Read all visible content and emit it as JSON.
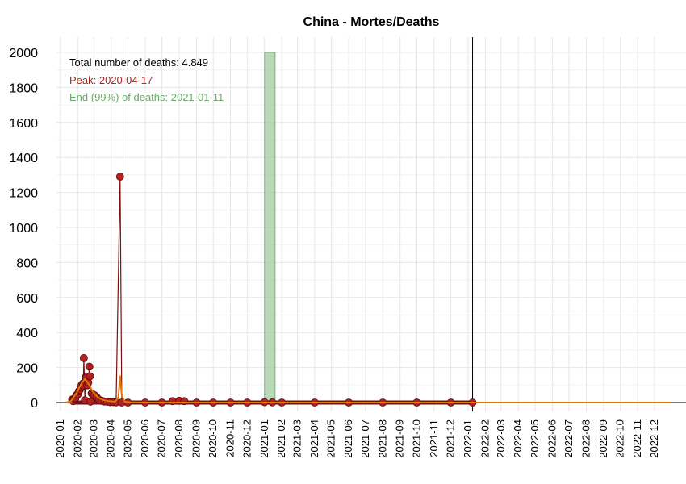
{
  "chart_data": {
    "type": "line",
    "title": "China - Mortes/Deaths",
    "xlabel": "",
    "ylabel": "",
    "ylim": [
      0,
      2000
    ],
    "yticks": [
      0,
      200,
      400,
      600,
      800,
      1000,
      1200,
      1400,
      1600,
      1800,
      2000
    ],
    "xlim": [
      "2019-12-25",
      "2023-01-05"
    ],
    "xticks": [
      "2020-01",
      "2020-02",
      "2020-03",
      "2020-04",
      "2020-05",
      "2020-06",
      "2020-07",
      "2020-08",
      "2020-09",
      "2020-10",
      "2020-11",
      "2020-12",
      "2021-01",
      "2021-02",
      "2021-03",
      "2021-04",
      "2021-05",
      "2021-06",
      "2021-07",
      "2021-08",
      "2021-09",
      "2021-10",
      "2021-11",
      "2021-12",
      "2022-01",
      "2022-02",
      "2022-03",
      "2022-04",
      "2022-05",
      "2022-06",
      "2022-07",
      "2022-08",
      "2022-09",
      "2022-10",
      "2022-11",
      "2022-12"
    ],
    "grid": true,
    "annotations": {
      "total": "Total number of deaths: 4.849",
      "peak": "Peak: 2020-04-17",
      "end": "End (99%) of deaths: 2021-01-11"
    },
    "end_band": {
      "start": "2021-01-01",
      "end": "2021-01-20"
    },
    "last_observation": "2022-01-09",
    "series": [
      {
        "kind": "observed",
        "color": "#b22222",
        "points": [
          [
            "2020-01-22",
            17
          ],
          [
            "2020-01-24",
            8
          ],
          [
            "2020-01-26",
            24
          ],
          [
            "2020-01-28",
            26
          ],
          [
            "2020-01-30",
            43
          ],
          [
            "2020-02-01",
            46
          ],
          [
            "2020-02-03",
            64
          ],
          [
            "2020-02-05",
            73
          ],
          [
            "2020-02-07",
            86
          ],
          [
            "2020-02-08",
            100
          ],
          [
            "2020-02-10",
            108
          ],
          [
            "2020-02-11",
            97
          ],
          [
            "2020-02-12",
            254
          ],
          [
            "2020-02-14",
            13
          ],
          [
            "2020-02-15",
            143
          ],
          [
            "2020-02-16",
            142
          ],
          [
            "2020-02-18",
            98
          ],
          [
            "2020-02-20",
            114
          ],
          [
            "2020-02-22",
            205
          ],
          [
            "2020-02-23",
            150
          ],
          [
            "2020-02-24",
            5
          ],
          [
            "2020-02-26",
            52
          ],
          [
            "2020-02-28",
            44
          ],
          [
            "2020-03-02",
            42
          ],
          [
            "2020-03-06",
            30
          ],
          [
            "2020-03-10",
            17
          ],
          [
            "2020-03-15",
            10
          ],
          [
            "2020-03-20",
            6
          ],
          [
            "2020-03-25",
            5
          ],
          [
            "2020-03-30",
            2
          ],
          [
            "2020-04-05",
            2
          ],
          [
            "2020-04-10",
            1
          ],
          [
            "2020-04-17",
            1290
          ],
          [
            "2020-04-20",
            0
          ],
          [
            "2020-05-01",
            0
          ],
          [
            "2020-06-01",
            0
          ],
          [
            "2020-07-01",
            0
          ],
          [
            "2020-07-20",
            8
          ],
          [
            "2020-08-01",
            10
          ],
          [
            "2020-08-10",
            8
          ],
          [
            "2020-09-01",
            0
          ],
          [
            "2020-10-01",
            0
          ],
          [
            "2020-11-01",
            0
          ],
          [
            "2020-12-01",
            0
          ],
          [
            "2021-01-01",
            2
          ],
          [
            "2021-01-15",
            1
          ],
          [
            "2021-02-01",
            0
          ],
          [
            "2021-04-01",
            0
          ],
          [
            "2021-06-01",
            0
          ],
          [
            "2021-08-01",
            0
          ],
          [
            "2021-10-01",
            0
          ],
          [
            "2021-12-01",
            0
          ],
          [
            "2022-01-09",
            0
          ]
        ]
      },
      {
        "kind": "fitted",
        "color": "#e07b00",
        "points": [
          [
            "2020-01-10",
            0
          ],
          [
            "2020-01-20",
            8
          ],
          [
            "2020-01-30",
            55
          ],
          [
            "2020-02-08",
            110
          ],
          [
            "2020-02-14",
            135
          ],
          [
            "2020-02-20",
            110
          ],
          [
            "2020-02-28",
            62
          ],
          [
            "2020-03-08",
            30
          ],
          [
            "2020-03-18",
            14
          ],
          [
            "2020-03-28",
            8
          ],
          [
            "2020-04-08",
            5
          ],
          [
            "2020-04-14",
            30
          ],
          [
            "2020-04-17",
            150
          ],
          [
            "2020-04-20",
            40
          ],
          [
            "2020-04-25",
            5
          ],
          [
            "2020-05-05",
            1
          ],
          [
            "2020-06-01",
            0
          ],
          [
            "2022-12-31",
            0
          ]
        ]
      }
    ]
  }
}
